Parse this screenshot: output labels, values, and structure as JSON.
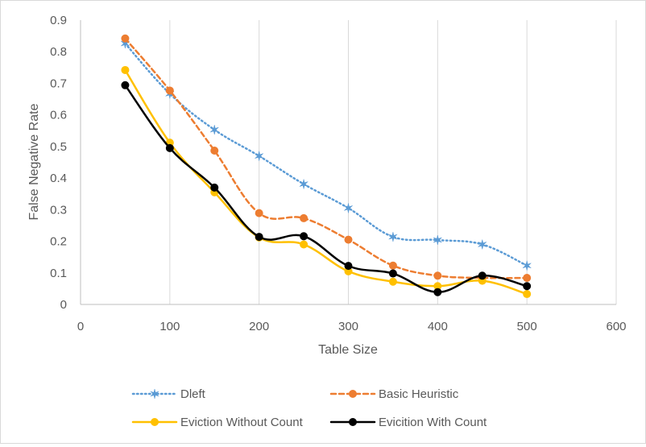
{
  "chart_data": {
    "type": "line",
    "title": "",
    "xlabel": "Table Size",
    "ylabel": "False Negative Rate",
    "xlim": [
      0,
      600
    ],
    "ylim": [
      0,
      0.9
    ],
    "xticks": [
      0,
      100,
      200,
      300,
      400,
      500,
      600
    ],
    "yticks": [
      0,
      0.1,
      0.2,
      0.3,
      0.4,
      0.5,
      0.6,
      0.7,
      0.8,
      0.9
    ],
    "grid": "vertical",
    "legend_position": "bottom",
    "x": [
      50,
      100,
      150,
      200,
      250,
      300,
      350,
      400,
      450,
      500
    ],
    "series": [
      {
        "name": "Dleft",
        "color": "#5b9bd5",
        "line_style": "dotted",
        "marker": "star",
        "values": [
          0.826,
          0.667,
          0.553,
          0.47,
          0.381,
          0.305,
          0.214,
          0.204,
          0.19,
          0.123
        ]
      },
      {
        "name": "Basic Heuristic",
        "color": "#ed7d31",
        "line_style": "dashed",
        "marker": "circle",
        "values": [
          0.842,
          0.677,
          0.487,
          0.289,
          0.273,
          0.205,
          0.123,
          0.091,
          0.084,
          0.084
        ]
      },
      {
        "name": "Eviction Without Count",
        "color": "#ffc000",
        "line_style": "solid",
        "marker": "circle",
        "values": [
          0.742,
          0.512,
          0.355,
          0.212,
          0.19,
          0.105,
          0.072,
          0.058,
          0.075,
          0.033
        ]
      },
      {
        "name": "Evicition With Count",
        "color": "#000000",
        "line_style": "solid",
        "marker": "circle",
        "values": [
          0.694,
          0.495,
          0.37,
          0.214,
          0.216,
          0.122,
          0.098,
          0.039,
          0.091,
          0.058
        ]
      }
    ]
  }
}
